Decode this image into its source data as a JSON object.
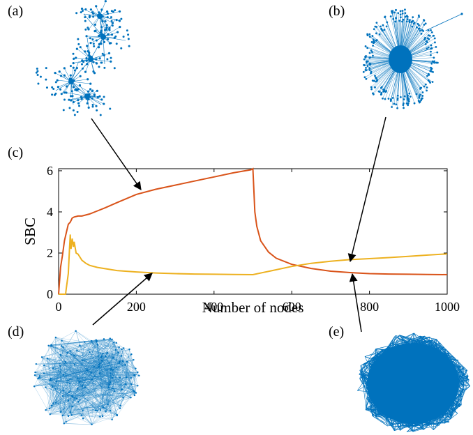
{
  "panel_labels": {
    "a": "(a)",
    "b": "(b)",
    "c": "(c)",
    "d": "(d)",
    "e": "(e)"
  },
  "colors": {
    "series_red": "#d95319",
    "series_yellow": "#edb120",
    "network": "#0072bd",
    "axis": "#000000"
  },
  "chart_data": {
    "type": "line",
    "xlabel": "Number of nodes",
    "ylabel": "SBC",
    "xlim": [
      0,
      1000
    ],
    "ylim": [
      0,
      6.1
    ],
    "xticks": [
      0,
      200,
      400,
      600,
      800,
      1000
    ],
    "yticks": [
      0,
      2,
      4,
      6
    ],
    "grid": false,
    "legend": "none",
    "series": [
      {
        "color": "#d95319",
        "x": [
          0,
          5,
          10,
          15,
          20,
          25,
          30,
          35,
          40,
          50,
          60,
          70,
          80,
          100,
          120,
          150,
          200,
          250,
          300,
          350,
          400,
          450,
          495,
          500,
          505,
          510,
          520,
          540,
          560,
          600,
          650,
          700,
          750,
          800,
          850,
          900,
          950,
          1000
        ],
        "y": [
          0,
          1.3,
          1.9,
          2.6,
          3.0,
          3.4,
          3.5,
          3.7,
          3.75,
          3.8,
          3.8,
          3.85,
          3.9,
          4.05,
          4.2,
          4.45,
          4.85,
          5.1,
          5.3,
          5.5,
          5.7,
          5.9,
          6.05,
          6.1,
          4.0,
          3.3,
          2.6,
          2.05,
          1.75,
          1.45,
          1.25,
          1.12,
          1.05,
          1.0,
          0.98,
          0.97,
          0.96,
          0.95
        ]
      },
      {
        "color": "#edb120",
        "x": [
          0,
          18,
          20,
          25,
          28,
          30,
          32,
          35,
          38,
          40,
          45,
          50,
          60,
          70,
          80,
          100,
          150,
          200,
          250,
          300,
          350,
          400,
          450,
          500,
          550,
          600,
          650,
          700,
          750,
          800,
          850,
          900,
          950,
          1000
        ],
        "y": [
          0,
          0,
          0.3,
          1.0,
          2.2,
          2.9,
          2.2,
          2.7,
          2.3,
          2.55,
          2.0,
          1.95,
          1.65,
          1.5,
          1.4,
          1.3,
          1.15,
          1.08,
          1.03,
          1.0,
          0.98,
          0.97,
          0.96,
          0.95,
          1.15,
          1.35,
          1.5,
          1.6,
          1.68,
          1.73,
          1.78,
          1.84,
          1.9,
          1.96
        ]
      }
    ]
  }
}
